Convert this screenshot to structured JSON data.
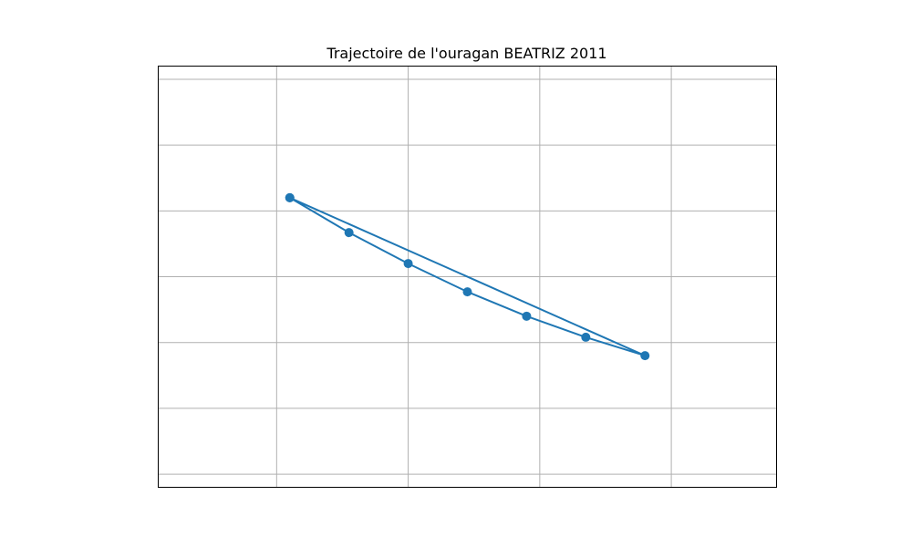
{
  "chart_data": {
    "type": "line",
    "title": "Trajectoire de l'ouragan BEATRIZ 2011",
    "xlabel": "",
    "ylabel": "",
    "xlim": [
      -0.9,
      3.8
    ],
    "ylim": [
      -0.2,
      6.2
    ],
    "grid": true,
    "legend": "none",
    "x": [
      0.1,
      0.55,
      1.0,
      1.45,
      1.9,
      2.35,
      2.8,
      0.1
    ],
    "y": [
      4.2,
      3.67,
      3.2,
      2.77,
      2.4,
      2.08,
      1.8,
      4.2
    ],
    "color": "#1f77b4",
    "grid_color": "#b0b0b0"
  }
}
